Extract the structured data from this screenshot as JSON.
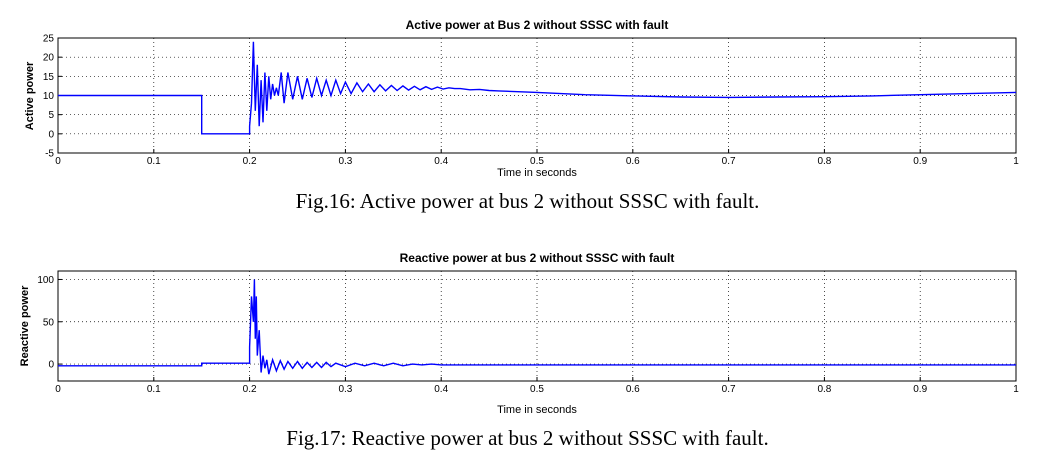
{
  "chart_data": [
    {
      "type": "line",
      "title": "Active power at Bus 2 without SSSC with fault",
      "xlabel": "Time in seconds",
      "ylabel": "Active power",
      "xlim": [
        0,
        1
      ],
      "ylim": [
        -5,
        25
      ],
      "xticks": [
        "0",
        "0.1",
        "0.2",
        "0.3",
        "0.4",
        "0.5",
        "0.6",
        "0.7",
        "0.8",
        "0.9",
        "1"
      ],
      "yticks": [
        "-5",
        "0",
        "5",
        "10",
        "15",
        "20",
        "25"
      ],
      "ytick_values": [
        -5,
        0,
        5,
        10,
        15,
        20,
        25
      ],
      "grid": true,
      "line_color": "#0000ff",
      "series": [
        {
          "x": [
            0,
            0.15,
            0.15,
            0.2,
            0.2,
            0.202,
            0.204,
            0.206,
            0.208,
            0.21,
            0.212,
            0.214,
            0.216,
            0.218,
            0.22,
            0.222,
            0.224,
            0.226,
            0.228,
            0.23,
            0.233,
            0.236,
            0.24,
            0.245,
            0.25,
            0.255,
            0.26,
            0.265,
            0.27,
            0.275,
            0.28,
            0.285,
            0.29,
            0.295,
            0.3,
            0.306,
            0.312,
            0.318,
            0.324,
            0.33,
            0.336,
            0.342,
            0.348,
            0.354,
            0.36,
            0.366,
            0.372,
            0.378,
            0.384,
            0.39,
            0.396,
            0.402,
            0.408,
            0.414,
            0.42,
            0.43,
            0.44,
            0.45,
            0.46,
            0.48,
            0.5,
            0.55,
            0.6,
            0.65,
            0.7,
            0.75,
            0.8,
            0.85,
            0.9,
            0.95,
            1.0
          ],
          "y": [
            10,
            10,
            0,
            0,
            2,
            8,
            24,
            6,
            18,
            2,
            14,
            3,
            16,
            6,
            15,
            9,
            13,
            10,
            12,
            10,
            16,
            8,
            16,
            9,
            15,
            9,
            14.5,
            9.5,
            14.5,
            10,
            14,
            10,
            14,
            10.5,
            13.5,
            10.5,
            13.3,
            11,
            13,
            11,
            12.8,
            11.2,
            12.6,
            11.3,
            12.5,
            11.4,
            12.4,
            11.5,
            12.3,
            11.6,
            12.2,
            11.7,
            12,
            11.8,
            11.8,
            11.5,
            11.6,
            11.3,
            11.2,
            11,
            10.8,
            10.2,
            9.9,
            9.6,
            9.5,
            9.6,
            9.7,
            9.9,
            10.2,
            10.5,
            10.8
          ]
        }
      ]
    },
    {
      "type": "line",
      "title": "Reactive power at bus 2 without SSSC with fault",
      "xlabel": "Time in seconds",
      "ylabel": "Reactive power",
      "xlim": [
        0,
        1
      ],
      "ylim": [
        -20,
        110
      ],
      "xticks": [
        "0",
        "0.1",
        "0.2",
        "0.3",
        "0.4",
        "0.5",
        "0.6",
        "0.7",
        "0.8",
        "0.9",
        "1"
      ],
      "yticks": [
        "0",
        "50",
        "100"
      ],
      "ytick_values": [
        0,
        50,
        100
      ],
      "grid": true,
      "line_color": "#0000ff",
      "series": [
        {
          "x": [
            0,
            0.15,
            0.15,
            0.2,
            0.2,
            0.202,
            0.204,
            0.205,
            0.206,
            0.207,
            0.208,
            0.21,
            0.212,
            0.214,
            0.216,
            0.218,
            0.22,
            0.224,
            0.228,
            0.232,
            0.236,
            0.24,
            0.245,
            0.25,
            0.255,
            0.26,
            0.265,
            0.27,
            0.275,
            0.28,
            0.285,
            0.29,
            0.3,
            0.31,
            0.32,
            0.33,
            0.34,
            0.35,
            0.36,
            0.37,
            0.38,
            0.39,
            0.4,
            0.42,
            0.45,
            0.5,
            0.6,
            0.7,
            0.8,
            0.9,
            1.0
          ],
          "y": [
            -2,
            -2,
            1,
            1,
            20,
            80,
            50,
            100,
            30,
            80,
            10,
            40,
            -10,
            10,
            -5,
            5,
            -12,
            5,
            -8,
            4,
            -6,
            3,
            -5,
            3,
            -5,
            2,
            -4,
            2,
            -4,
            2,
            -3,
            1,
            -3,
            1,
            -2,
            1,
            -2,
            1,
            -2,
            0,
            -1,
            0,
            -1,
            -1,
            -1,
            -1,
            -1,
            -1,
            -1,
            -1,
            -1
          ]
        }
      ]
    }
  ],
  "captions": {
    "fig16": "Fig.16: Active power at bus 2 without SSSC with fault.",
    "fig17": "Fig.17: Reactive power at bus 2 without SSSC with fault."
  }
}
